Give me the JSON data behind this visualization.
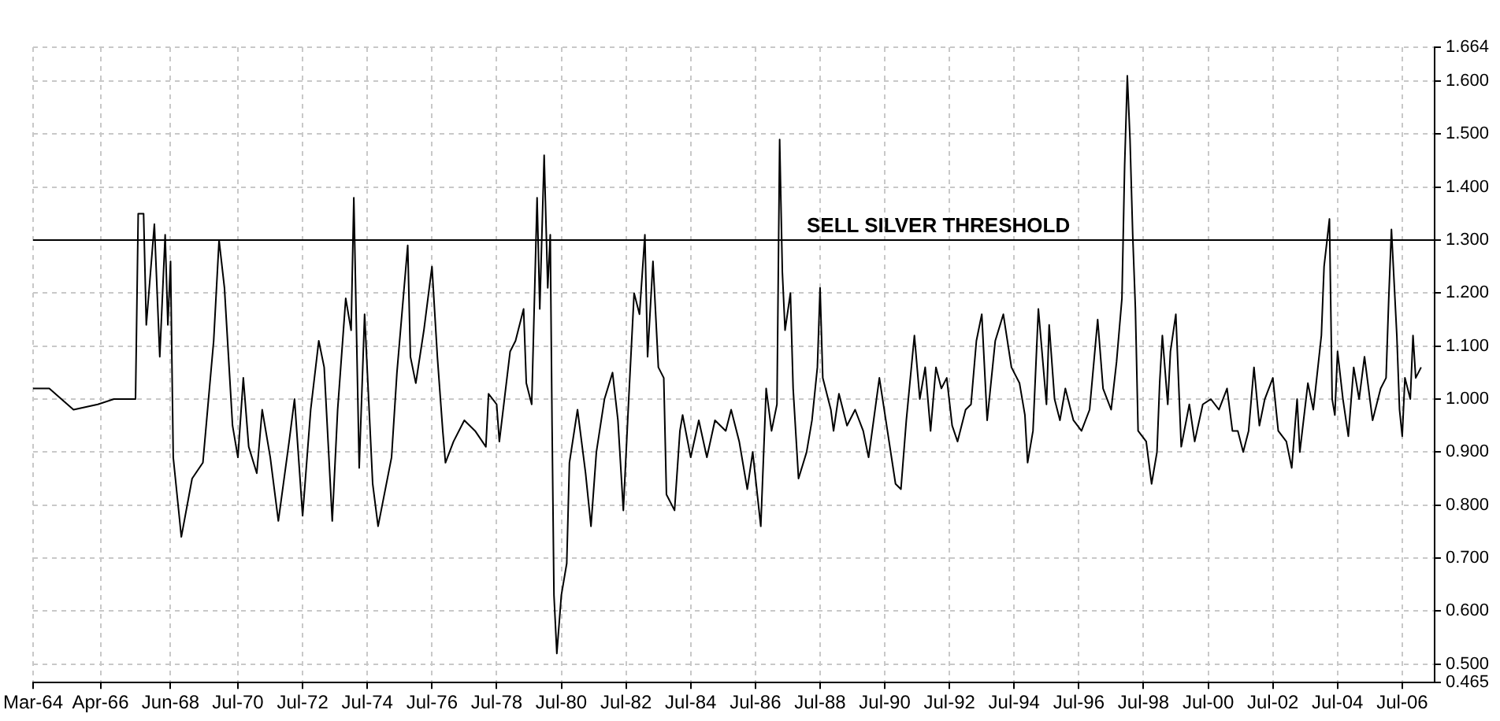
{
  "chart_data": {
    "type": "line",
    "x": [
      "1964-03",
      "1964-09",
      "1965-06",
      "1966-03",
      "1966-09",
      "1967-05",
      "1967-06",
      "1967-08",
      "1967-09",
      "1967-12",
      "1968-02",
      "1968-04",
      "1968-05",
      "1968-06",
      "1968-07",
      "1968-08",
      "1968-10",
      "1969-02",
      "1969-06",
      "1969-10",
      "1969-12",
      "1970-02",
      "1970-05",
      "1970-07",
      "1970-09",
      "1970-11",
      "1971-02",
      "1971-04",
      "1971-07",
      "1971-10",
      "1972-02",
      "1972-04",
      "1972-07",
      "1972-10",
      "1973-01",
      "1973-03",
      "1973-06",
      "1973-08",
      "1973-11",
      "1974-01",
      "1974-02",
      "1974-04",
      "1974-06",
      "1974-09",
      "1974-11",
      "1975-04",
      "1975-06",
      "1975-10",
      "1975-11",
      "1976-01",
      "1976-04",
      "1976-07",
      "1976-09",
      "1976-11",
      "1976-12",
      "1977-03",
      "1977-07",
      "1977-11",
      "1978-03",
      "1978-04",
      "1978-07",
      "1978-08",
      "1978-12",
      "1979-02",
      "1979-05",
      "1979-06",
      "1979-08",
      "1979-10",
      "1979-11",
      "1979-12-20",
      "1980-01-30",
      "1980-02-28",
      "1980-03-18",
      "1980-04-09",
      "1980-05-11",
      "1980-07",
      "1980-09",
      "1980-10",
      "1981-01",
      "1981-04",
      "1981-06",
      "1981-08",
      "1981-11",
      "1982-02",
      "1982-04",
      "1982-06",
      "1982-08",
      "1982-10",
      "1982-12",
      "1983-02",
      "1983-03",
      "1983-05",
      "1983-07",
      "1983-09",
      "1983-10",
      "1984-01",
      "1984-03",
      "1984-04",
      "1984-07",
      "1984-10",
      "1985-01",
      "1985-04",
      "1985-08",
      "1985-10",
      "1986-01",
      "1986-04",
      "1986-06",
      "1986-09",
      "1986-11",
      "1987-01",
      "1987-03",
      "1987-04",
      "1987-05",
      "1987-06",
      "1987-08",
      "1987-09",
      "1987-11",
      "1988-02",
      "1988-04",
      "1988-06",
      "1988-07",
      "1988-08",
      "1988-11",
      "1988-12",
      "1989-02",
      "1989-05",
      "1989-08",
      "1989-11",
      "1990-01",
      "1990-05",
      "1990-08",
      "1990-11",
      "1991-01",
      "1991-03",
      "1991-06",
      "1991-08",
      "1991-10",
      "1991-12",
      "1992-02",
      "1992-04",
      "1992-06",
      "1992-08",
      "1992-10",
      "1993-01",
      "1993-03",
      "1993-05",
      "1993-07",
      "1993-09",
      "1993-12",
      "1994-03",
      "1994-06",
      "1994-09",
      "1994-11",
      "1994-12",
      "1995-02",
      "1995-04",
      "1995-07",
      "1995-08",
      "1995-10",
      "1995-12",
      "1996-02",
      "1996-05",
      "1996-08",
      "1996-11",
      "1997-02",
      "1997-04",
      "1997-07",
      "1997-09",
      "1997-11",
      "1997-12",
      "1998-01",
      "1998-02",
      "1998-03",
      "1998-04",
      "1998-05",
      "1998-08",
      "1998-10",
      "1998-12",
      "1999-01",
      "1999-02",
      "1999-04",
      "1999-05",
      "1999-07",
      "1999-09",
      "1999-12",
      "2000-02",
      "2000-05",
      "2000-08",
      "2000-11",
      "2001-02",
      "2001-04",
      "2001-06",
      "2001-08",
      "2001-10",
      "2001-12",
      "2002-02",
      "2002-04",
      "2002-07",
      "2002-09",
      "2002-12",
      "2003-02",
      "2003-04",
      "2003-05",
      "2003-08",
      "2003-10",
      "2004-01",
      "2004-02",
      "2004-04",
      "2004-05",
      "2004-06",
      "2004-07",
      "2004-09",
      "2004-11",
      "2005-01",
      "2005-03",
      "2005-05",
      "2005-08",
      "2005-11",
      "2006-01",
      "2006-02",
      "2006-03",
      "2006-05",
      "2006-06",
      "2006-07",
      "2006-08",
      "2006-10",
      "2006-11",
      "2006-12",
      "2007-02"
    ],
    "series": [
      {
        "color": "#000000",
        "values": [
          1.02,
          1.02,
          0.98,
          0.99,
          1.0,
          1.0,
          1.35,
          1.35,
          1.14,
          1.33,
          1.08,
          1.31,
          1.14,
          1.26,
          0.89,
          0.84,
          0.74,
          0.85,
          0.88,
          1.11,
          1.3,
          1.21,
          0.95,
          0.89,
          1.04,
          0.91,
          0.86,
          0.98,
          0.89,
          0.77,
          0.92,
          1.0,
          0.78,
          0.98,
          1.11,
          1.06,
          0.77,
          0.98,
          1.19,
          1.13,
          1.38,
          0.87,
          1.16,
          0.84,
          0.76,
          0.89,
          1.05,
          1.29,
          1.08,
          1.03,
          1.13,
          1.25,
          1.08,
          0.94,
          0.88,
          0.92,
          0.96,
          0.94,
          0.91,
          1.01,
          0.99,
          0.92,
          1.09,
          1.11,
          1.17,
          1.03,
          0.99,
          1.38,
          1.17,
          1.46,
          1.21,
          1.31,
          0.95,
          0.63,
          0.52,
          0.63,
          0.69,
          0.88,
          0.98,
          0.86,
          0.76,
          0.9,
          1.0,
          1.05,
          0.96,
          0.79,
          1.0,
          1.2,
          1.16,
          1.31,
          1.08,
          1.26,
          1.06,
          1.04,
          0.82,
          0.79,
          0.94,
          0.97,
          0.89,
          0.96,
          0.89,
          0.96,
          0.94,
          0.98,
          0.92,
          0.83,
          0.9,
          0.76,
          1.02,
          0.94,
          0.99,
          1.49,
          1.24,
          1.13,
          1.2,
          1.02,
          0.85,
          0.9,
          0.96,
          1.06,
          1.21,
          1.04,
          0.98,
          0.94,
          1.01,
          0.95,
          0.98,
          0.94,
          0.89,
          1.04,
          0.94,
          0.84,
          0.83,
          0.96,
          1.12,
          1.0,
          1.06,
          0.94,
          1.06,
          1.02,
          1.04,
          0.95,
          0.92,
          0.98,
          0.99,
          1.11,
          1.16,
          0.96,
          1.11,
          1.16,
          1.06,
          1.03,
          0.97,
          0.88,
          0.94,
          1.17,
          0.99,
          1.14,
          1.0,
          0.96,
          1.02,
          0.96,
          0.94,
          0.98,
          1.15,
          1.02,
          0.98,
          1.07,
          1.19,
          1.44,
          1.61,
          1.49,
          1.31,
          1.17,
          0.94,
          0.92,
          0.84,
          0.9,
          1.03,
          1.12,
          0.99,
          1.09,
          1.16,
          0.91,
          0.99,
          0.92,
          0.99,
          1.0,
          0.98,
          1.02,
          0.94,
          0.94,
          0.9,
          0.94,
          1.06,
          0.95,
          1.0,
          1.04,
          0.94,
          0.92,
          0.87,
          1.0,
          0.9,
          1.03,
          0.98,
          1.12,
          1.25,
          1.34,
          1.0,
          0.97,
          1.09,
          1.0,
          0.93,
          1.06,
          1.0,
          1.08,
          0.96,
          1.02,
          1.04,
          1.19,
          1.32,
          1.12,
          0.98,
          0.93,
          1.04,
          1.0,
          1.12,
          1.04,
          1.06
        ]
      }
    ],
    "xlim": [
      "1964-03",
      "2007-07"
    ],
    "xticks": [
      {
        "value": "1964-03",
        "label": "Mar-64"
      },
      {
        "value": "1966-04",
        "label": "Apr-66"
      },
      {
        "value": "1968-06",
        "label": "Jun-68"
      },
      {
        "value": "1970-07",
        "label": "Jul-70"
      },
      {
        "value": "1972-07",
        "label": "Jul-72"
      },
      {
        "value": "1974-07",
        "label": "Jul-74"
      },
      {
        "value": "1976-07",
        "label": "Jul-76"
      },
      {
        "value": "1978-07",
        "label": "Jul-78"
      },
      {
        "value": "1980-07",
        "label": "Jul-80"
      },
      {
        "value": "1982-07",
        "label": "Jul-82"
      },
      {
        "value": "1984-07",
        "label": "Jul-84"
      },
      {
        "value": "1986-07",
        "label": "Jul-86"
      },
      {
        "value": "1988-07",
        "label": "Jul-88"
      },
      {
        "value": "1990-07",
        "label": "Jul-90"
      },
      {
        "value": "1992-07",
        "label": "Jul-92"
      },
      {
        "value": "1994-07",
        "label": "Jul-94"
      },
      {
        "value": "1996-07",
        "label": "Jul-96"
      },
      {
        "value": "1998-07",
        "label": "Jul-98"
      },
      {
        "value": "2000-07",
        "label": "Jul-00"
      },
      {
        "value": "2002-07",
        "label": "Jul-02"
      },
      {
        "value": "2004-07",
        "label": "Jul-04"
      },
      {
        "value": "2006-07",
        "label": "Jul-06"
      }
    ],
    "ylim": [
      0.465,
      1.664
    ],
    "yticks": [
      0.465,
      {
        "value": 0.5,
        "label": "0.500"
      },
      {
        "value": 0.6,
        "label": "0.600"
      },
      {
        "value": 0.7,
        "label": "0.700"
      },
      {
        "value": 0.8,
        "label": "0.800"
      },
      {
        "value": 0.9,
        "label": "0.900"
      },
      {
        "value": 1.0,
        "label": "1.000"
      },
      {
        "value": 1.1,
        "label": "1.100"
      },
      {
        "value": 1.2,
        "label": "1.200"
      },
      {
        "value": 1.3,
        "label": "1.300"
      },
      {
        "value": 1.4,
        "label": "1.400"
      },
      {
        "value": 1.5,
        "label": "1.500"
      },
      {
        "value": 1.6,
        "label": "1.600"
      },
      1.664
    ],
    "grid": true,
    "ref_lines": [
      {
        "axis": "y",
        "value": 1.3,
        "label": "SELL SILVER THRESHOLD",
        "color": "#000000"
      }
    ]
  }
}
